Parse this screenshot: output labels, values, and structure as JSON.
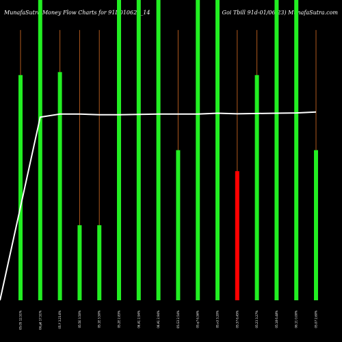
{
  "chart_data": {
    "type": "bar",
    "title_left": "MunafaSutra  Money Flow  Charts for 91D010623_14",
    "title_right": "Goi   Tbill 91d-01/06/23) MunafaSutra.com",
    "colors": {
      "background": "#000000",
      "up": "#22ee22",
      "down": "#ff0000",
      "wick": "#b05a1e",
      "line": "#ffffff",
      "text": "#ffffff"
    },
    "y_range": [
      0,
      100
    ],
    "categories": [
      "05.05 12.51%",
      "06.p6 17.51%",
      "05.Y 3.23.6%",
      "05.5E 3.50%",
      "05.1E 3.50%",
      "05.2E 2.83%",
      "06.A1 2.94%",
      "06.A1 2.94%",
      "05.G3 2.54%",
      "05.q7 6.56%",
      "05.n3 3.20%",
      "05.37 6.45%",
      "05.23 3.27%",
      "05.18 6.48%",
      "06.11 0.00%",
      "05.07 2.60%"
    ],
    "bar_values": [
      75,
      100,
      76,
      25,
      25,
      100,
      100,
      100,
      50,
      100,
      100,
      43,
      75,
      100,
      100,
      50
    ],
    "bar_directions": [
      "up",
      "up",
      "up",
      "up",
      "up",
      "up",
      "up",
      "up",
      "up",
      "up",
      "up",
      "down",
      "up",
      "up",
      "up",
      "up"
    ],
    "wick_values": [
      90,
      100,
      90,
      90,
      90,
      100,
      100,
      100,
      90,
      100,
      100,
      90,
      90,
      100,
      100,
      90
    ],
    "line_values": [
      0,
      61,
      62,
      62,
      61.8,
      61.8,
      61.9,
      62,
      62,
      62,
      62.3,
      62.1,
      62.2,
      62.3,
      62.4,
      62.7
    ]
  }
}
